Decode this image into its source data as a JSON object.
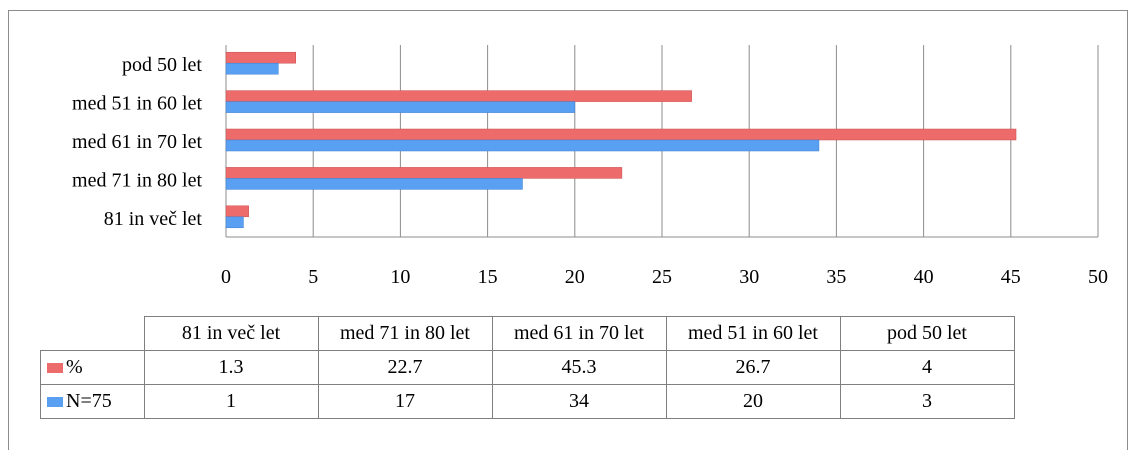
{
  "chart_data": {
    "type": "bar",
    "orientation": "horizontal",
    "categories": [
      "pod 50 let",
      "med 51 in 60 let",
      "med 61 in 70 let",
      "med 71 in 80 let",
      "81 in več let"
    ],
    "series": [
      {
        "name": "%",
        "values": [
          4,
          26.7,
          45.3,
          22.7,
          1.3
        ],
        "color": "#ee6b6b"
      },
      {
        "name": "N=75",
        "values": [
          3,
          20,
          34,
          17,
          1
        ],
        "color": "#5aa0f2"
      }
    ],
    "xlim": [
      0,
      50
    ],
    "xticks": [
      "0",
      "5",
      "10",
      "15",
      "20",
      "25",
      "30",
      "35",
      "40",
      "45",
      "50"
    ],
    "grid": true,
    "legend": "data-table-below",
    "table": {
      "headers": [
        "81 in več let",
        "med 71 in 80 let",
        "med 61 in 70 let",
        "med 51 in 60 let",
        "pod 50 let"
      ],
      "rows": [
        {
          "label": "%",
          "values": [
            "1.3",
            "22.7",
            "45.3",
            "26.7",
            "4"
          ]
        },
        {
          "label": "N=75",
          "values": [
            "1",
            "17",
            "34",
            "20",
            "3"
          ]
        }
      ]
    }
  }
}
